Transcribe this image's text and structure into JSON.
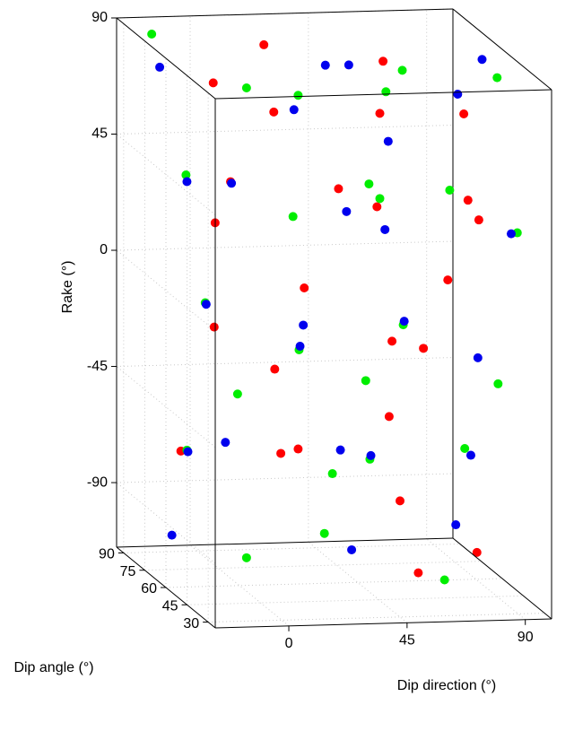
{
  "chart_data": {
    "type": "scatter3d",
    "xlabel": "Dip direction (°)",
    "ylabel": "Dip angle (°)",
    "zlabel": "Rake (°)",
    "xlim": [
      -28,
      100
    ],
    "ylim": [
      25,
      95
    ],
    "zlim": [
      -115,
      90
    ],
    "xticks": [
      0,
      45,
      90
    ],
    "yticks": [
      30,
      45,
      60,
      75,
      90
    ],
    "zticks": [
      90,
      45,
      0,
      -45,
      -90
    ],
    "grid": true,
    "series": [
      {
        "color": "#ff0000",
        "x": [
          -10,
          5,
          20,
          40,
          60,
          80,
          -20,
          10,
          35,
          55,
          75,
          95,
          -15,
          0,
          30,
          50,
          70,
          90,
          -25,
          5,
          25,
          45,
          65,
          85,
          60
        ],
        "y": [
          60,
          45,
          80,
          35,
          70,
          50,
          40,
          85,
          55,
          65,
          30,
          75,
          50,
          35,
          70,
          45,
          60,
          80,
          55,
          40,
          65,
          30,
          75,
          50,
          45
        ],
        "z": [
          80,
          75,
          85,
          78,
          82,
          70,
          35,
          30,
          40,
          28,
          38,
          25,
          -10,
          -20,
          -5,
          -15,
          -25,
          -8,
          -60,
          -55,
          -65,
          -70,
          -58,
          -100,
          -105
        ]
      },
      {
        "color": "#00ee00",
        "x": [
          -20,
          0,
          25,
          45,
          70,
          90,
          -15,
          15,
          40,
          60,
          80,
          95,
          -5,
          20,
          40,
          65,
          85,
          -20,
          10,
          30,
          55,
          75,
          0,
          35,
          70
        ],
        "y": [
          85,
          55,
          65,
          40,
          75,
          45,
          70,
          50,
          35,
          80,
          60,
          40,
          75,
          55,
          45,
          65,
          35,
          60,
          80,
          50,
          70,
          40,
          55,
          65,
          45
        ],
        "z": [
          88,
          80,
          72,
          84,
          76,
          86,
          40,
          32,
          45,
          30,
          36,
          28,
          -12,
          -22,
          -30,
          -18,
          -28,
          -62,
          -50,
          -68,
          -72,
          -55,
          -102,
          -98,
          -108
        ]
      },
      {
        "color": "#0000ee",
        "x": [
          -25,
          10,
          30,
          55,
          75,
          95,
          -20,
          5,
          30,
          50,
          70,
          90,
          -10,
          15,
          35,
          60,
          80,
          -25,
          0,
          25,
          50,
          80,
          -15,
          40,
          85
        ],
        "y": [
          70,
          40,
          55,
          85,
          45,
          65,
          60,
          75,
          40,
          50,
          85,
          35,
          65,
          45,
          80,
          55,
          40,
          50,
          70,
          35,
          60,
          45,
          80,
          55,
          65
        ],
        "z": [
          82,
          78,
          88,
          74,
          80,
          84,
          42,
          34,
          38,
          26,
          44,
          30,
          -8,
          -16,
          -24,
          -12,
          -20,
          -58,
          -64,
          -52,
          -66,
          -60,
          -104,
          -100,
          -96
        ]
      }
    ]
  }
}
